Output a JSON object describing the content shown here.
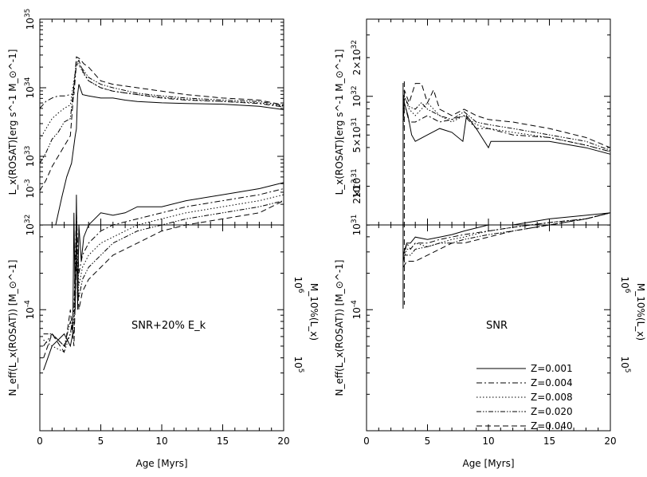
{
  "chart_data": [
    {
      "type": "line",
      "panel": "top-left",
      "ylabel": "L_x(ROSAT)[erg s^-1 M_⊙^-1]",
      "xlim": [
        0,
        20
      ],
      "ylim_log10": [
        32,
        35
      ],
      "yscale": "log",
      "y_ticks": [
        {
          "v": 32,
          "base": "10",
          "exp": "32"
        },
        {
          "v": 33,
          "base": "10",
          "exp": "33"
        },
        {
          "v": 34,
          "base": "10",
          "exp": "34"
        },
        {
          "v": 35,
          "base": "10",
          "exp": "35"
        }
      ],
      "series": [
        {
          "name": "Z=0.001",
          "x": [
            1.3,
            1.8,
            2.2,
            2.6,
            2.9,
            3.0,
            3.1,
            3.2,
            3.5,
            4,
            5,
            6,
            7,
            8,
            10,
            12,
            15,
            18,
            20
          ],
          "y_log10": [
            32,
            32.4,
            32.7,
            32.9,
            33.3,
            33.4,
            33.9,
            34.05,
            33.9,
            33.88,
            33.85,
            33.85,
            33.82,
            33.8,
            33.78,
            33.77,
            33.76,
            33.73,
            33.68
          ]
        },
        {
          "name": "Z=0.004",
          "x": [
            0,
            0.5,
            1,
            1.5,
            2,
            2.5,
            2.8,
            3.0,
            3.2,
            3.5,
            4,
            5,
            6,
            8,
            10,
            12,
            15,
            18,
            20
          ],
          "y_log10": [
            33.7,
            33.8,
            33.85,
            33.88,
            33.88,
            33.9,
            33.9,
            34.35,
            34.4,
            34.25,
            34.1,
            34.0,
            33.95,
            33.9,
            33.85,
            33.82,
            33.8,
            33.77,
            33.72
          ]
        },
        {
          "name": "Z=0.008",
          "x": [
            0,
            0.5,
            1,
            1.5,
            2,
            2.5,
            3.0,
            3.3,
            3.6,
            4,
            5,
            6,
            8,
            10,
            12,
            15,
            18,
            20
          ],
          "y_log10": [
            33.25,
            33.4,
            33.55,
            33.63,
            33.7,
            33.75,
            34.35,
            34.3,
            34.2,
            34.1,
            34.0,
            33.95,
            33.9,
            33.86,
            33.83,
            33.8,
            33.78,
            33.73
          ]
        },
        {
          "name": "Z=0.020",
          "x": [
            0,
            0.5,
            1,
            1.5,
            2,
            2.5,
            3.0,
            3.3,
            3.6,
            4,
            5,
            6,
            8,
            10,
            12,
            15,
            18,
            20
          ],
          "y_log10": [
            32.9,
            33.05,
            33.25,
            33.35,
            33.5,
            33.55,
            34.38,
            34.32,
            34.25,
            34.15,
            34.05,
            34.0,
            33.92,
            33.88,
            33.85,
            33.82,
            33.8,
            33.74
          ]
        },
        {
          "name": "Z=0.040",
          "x": [
            0,
            0.5,
            1,
            1.5,
            2,
            2.5,
            3.0,
            3.3,
            3.6,
            4,
            5,
            6,
            8,
            10,
            12,
            15,
            18,
            20
          ],
          "y_log10": [
            32.5,
            32.65,
            32.85,
            33.0,
            33.15,
            33.3,
            34.45,
            34.42,
            34.35,
            34.3,
            34.1,
            34.05,
            34.0,
            33.95,
            33.9,
            33.85,
            33.82,
            33.75
          ]
        }
      ]
    },
    {
      "type": "line",
      "panel": "bottom-left",
      "ylabel": "N_eff(L_x(ROSAT)) [M_⊙^-1]",
      "ylabel2": "M_10%(L_x)",
      "xlabel": "Age [Myrs]",
      "xlim": [
        0,
        20
      ],
      "x_ticks": [
        "0",
        "5",
        "10",
        "15",
        "20"
      ],
      "ylim_log10": [
        -5.0,
        -3.3
      ],
      "yscale": "log",
      "y_ticks": [
        {
          "v": -4,
          "base": "10",
          "exp": "-4"
        },
        {
          "v": -3,
          "base": "10",
          "exp": "-3"
        }
      ],
      "y2_ticks": [
        {
          "base": "10",
          "exp": "6"
        },
        {
          "base": "10",
          "exp": "5"
        }
      ],
      "annotation": "SNR+20% E_k",
      "series": [
        {
          "name": "Z=0.001",
          "x": [
            0.3,
            1,
            2,
            2.5,
            2.7,
            2.8,
            2.9,
            3.0,
            3.1,
            3.2,
            3.4,
            3.6,
            4,
            5,
            6,
            7,
            8,
            10,
            12,
            15,
            18,
            20
          ],
          "y_neglog": [
            4.5,
            4.3,
            4.2,
            4.3,
            4.2,
            3.2,
            4.0,
            3.05,
            4.0,
            3.3,
            3.6,
            3.4,
            3.3,
            3.2,
            3.22,
            3.2,
            3.15,
            3.15,
            3.1,
            3.05,
            3.0,
            2.95
          ]
        },
        {
          "name": "Z=0.004",
          "x": [
            0.3,
            1,
            2,
            2.5,
            2.8,
            3.0,
            3.2,
            3.5,
            4,
            5,
            6,
            8,
            10,
            12,
            15,
            18,
            20
          ],
          "y_neglog": [
            4.3,
            4.2,
            4.3,
            4.2,
            4.0,
            3.2,
            3.7,
            3.55,
            3.45,
            3.35,
            3.3,
            3.25,
            3.2,
            3.15,
            3.1,
            3.05,
            3.0
          ]
        },
        {
          "name": "Z=0.008",
          "x": [
            0.3,
            1,
            2,
            2.5,
            2.8,
            3.0,
            3.2,
            3.5,
            4,
            5,
            6,
            8,
            10,
            12,
            15,
            18,
            20
          ],
          "y_neglog": [
            4.25,
            4.3,
            4.35,
            4.2,
            4.1,
            3.4,
            3.8,
            3.65,
            3.55,
            3.45,
            3.4,
            3.3,
            3.25,
            3.2,
            3.15,
            3.1,
            3.05
          ]
        },
        {
          "name": "Z=0.020",
          "x": [
            0.3,
            1,
            2,
            2.5,
            2.8,
            3.0,
            3.2,
            3.5,
            4,
            5,
            6,
            8,
            10,
            12,
            15,
            18,
            20
          ],
          "y_neglog": [
            4.2,
            4.2,
            4.3,
            4.1,
            4.2,
            3.5,
            3.9,
            3.75,
            3.65,
            3.55,
            3.45,
            3.35,
            3.3,
            3.25,
            3.2,
            3.15,
            3.1
          ]
        },
        {
          "name": "Z=0.040",
          "x": [
            0.3,
            1,
            2,
            2.5,
            2.8,
            3.0,
            3.2,
            3.5,
            4,
            5,
            6,
            8,
            10,
            12,
            15,
            18,
            20
          ],
          "y_neglog": [
            4.4,
            4.2,
            4.35,
            4.0,
            4.3,
            3.6,
            4.0,
            3.85,
            3.75,
            3.65,
            3.55,
            3.45,
            3.35,
            3.3,
            3.25,
            3.2,
            3.1
          ]
        }
      ]
    },
    {
      "type": "line",
      "panel": "top-right",
      "ylabel": "L_x(ROSAT)[erg s^-1 M_⊙^-1]",
      "xlim": [
        0,
        20
      ],
      "ylim_log10": [
        31,
        32.6
      ],
      "yscale": "log",
      "y_ticks": [
        {
          "v": 31,
          "base": "10",
          "exp": "31"
        },
        {
          "v": 31.301,
          "base": "2×10",
          "exp": "31"
        },
        {
          "v": 31.699,
          "base": "5×10",
          "exp": "31"
        },
        {
          "v": 32,
          "base": "10",
          "exp": "32"
        },
        {
          "v": 32.301,
          "base": "2×10",
          "exp": "32"
        }
      ],
      "series": [
        {
          "name": "Z=0.001",
          "x": [
            3.0,
            3.1,
            3.4,
            3.7,
            4,
            5,
            6,
            7,
            7.9,
            8.2,
            9,
            10,
            10.2,
            12,
            15,
            18,
            20
          ],
          "y_log10": [
            31.8,
            31.95,
            31.85,
            31.7,
            31.65,
            31.7,
            31.75,
            31.72,
            31.65,
            31.85,
            31.75,
            31.6,
            31.65,
            31.65,
            31.65,
            31.6,
            31.55
          ]
        },
        {
          "name": "Z=0.004",
          "x": [
            3.0,
            3.1,
            3.5,
            4,
            5,
            6,
            7,
            8,
            9,
            10,
            12,
            15,
            18,
            20
          ],
          "y_log10": [
            31.75,
            31.95,
            31.8,
            31.8,
            31.85,
            31.8,
            31.82,
            31.85,
            31.75,
            31.75,
            31.7,
            31.68,
            31.62,
            31.57
          ]
        },
        {
          "name": "Z=0.008",
          "x": [
            3.0,
            3.1,
            3.5,
            4,
            4.5,
            5,
            6,
            7,
            8,
            9,
            10,
            12,
            15,
            18,
            20
          ],
          "y_log10": [
            31.8,
            32.0,
            31.9,
            31.85,
            31.9,
            31.95,
            31.85,
            31.8,
            31.85,
            31.78,
            31.75,
            31.72,
            31.68,
            31.62,
            31.57
          ]
        },
        {
          "name": "Z=0.020",
          "x": [
            3.0,
            3.1,
            3.5,
            4,
            4.5,
            5,
            6,
            7,
            8,
            9,
            10,
            12,
            15,
            18,
            20
          ],
          "y_log10": [
            31.85,
            32.0,
            31.92,
            31.9,
            31.95,
            31.9,
            31.85,
            31.82,
            31.88,
            31.8,
            31.78,
            31.75,
            31.7,
            31.65,
            31.58
          ]
        },
        {
          "name": "Z=0.040",
          "x": [
            3.0,
            3.1,
            3.5,
            4,
            4.5,
            5,
            5.5,
            6,
            7,
            8,
            9,
            10,
            12,
            15,
            18,
            20
          ],
          "y_log10": [
            31.9,
            32.05,
            31.95,
            32.1,
            32.1,
            31.95,
            32.05,
            31.9,
            31.85,
            31.9,
            31.85,
            31.82,
            31.8,
            31.75,
            31.68,
            31.6
          ]
        }
      ]
    },
    {
      "type": "line",
      "panel": "bottom-right",
      "ylabel": "N_eff(L_x(ROSAT)) [M_⊙^-1]",
      "ylabel2": "M_10%(L_x)",
      "xlabel": "Age [Myrs]",
      "xlim": [
        0,
        20
      ],
      "x_ticks": [
        "0",
        "5",
        "10",
        "15",
        "20"
      ],
      "ylim_log10": [
        -5.0,
        -3.3
      ],
      "yscale": "log",
      "y_ticks": [
        {
          "v": -4,
          "base": "10",
          "exp": "-4"
        },
        {
          "v": -3,
          "base": "10",
          "exp": "-3"
        }
      ],
      "y2_ticks": [
        {
          "base": "10",
          "exp": "6"
        },
        {
          "base": "10",
          "exp": "5"
        }
      ],
      "annotation": "SNR",
      "series": [
        {
          "name": "Z=0.001",
          "x": [
            3.0,
            3.3,
            3.6,
            4,
            5,
            6,
            7,
            8,
            10,
            12,
            15,
            18,
            20
          ],
          "y_neglog": [
            3.55,
            3.45,
            3.45,
            3.4,
            3.42,
            3.4,
            3.38,
            3.35,
            3.3,
            3.3,
            3.25,
            3.22,
            3.2
          ]
        },
        {
          "name": "Z=0.004",
          "x": [
            3.0,
            3.3,
            3.6,
            4,
            5,
            6,
            7,
            8,
            10,
            12,
            15,
            18,
            20
          ],
          "y_neglog": [
            3.6,
            3.45,
            3.5,
            3.45,
            3.45,
            3.42,
            3.4,
            3.38,
            3.35,
            3.32,
            3.28,
            3.25,
            3.2
          ]
        },
        {
          "name": "Z=0.008",
          "x": [
            3.0,
            3.3,
            3.6,
            4,
            5,
            6,
            7,
            8,
            10,
            12,
            15,
            18,
            20
          ],
          "y_neglog": [
            3.6,
            3.5,
            3.5,
            3.45,
            3.48,
            3.45,
            3.42,
            3.4,
            3.35,
            3.32,
            3.28,
            3.25,
            3.2
          ]
        },
        {
          "name": "Z=0.020",
          "x": [
            3.0,
            3.3,
            3.6,
            4,
            5,
            6,
            7,
            8,
            10,
            12,
            15,
            18,
            20
          ],
          "y_neglog": [
            3.55,
            3.55,
            3.55,
            3.5,
            3.48,
            3.45,
            3.45,
            3.42,
            3.38,
            3.35,
            3.3,
            3.25,
            3.2
          ]
        },
        {
          "name": "Z=0.040",
          "x": [
            3.0,
            3.3,
            3.6,
            4,
            5,
            6,
            7,
            8,
            10,
            12,
            15,
            18,
            20
          ],
          "y_neglog": [
            3.65,
            3.6,
            3.6,
            3.6,
            3.55,
            3.5,
            3.45,
            3.45,
            3.4,
            3.35,
            3.3,
            3.25,
            3.2
          ]
        }
      ]
    }
  ],
  "legend": {
    "placement": "bottom-right",
    "entries": [
      {
        "label": "Z=0.001",
        "style": "solid"
      },
      {
        "label": "Z=0.004",
        "style": "dash-dot"
      },
      {
        "label": "Z=0.008",
        "style": "dotted"
      },
      {
        "label": "Z=0.020",
        "style": "dash-dot-dot"
      },
      {
        "label": "Z=0.040",
        "style": "dashed"
      }
    ]
  }
}
